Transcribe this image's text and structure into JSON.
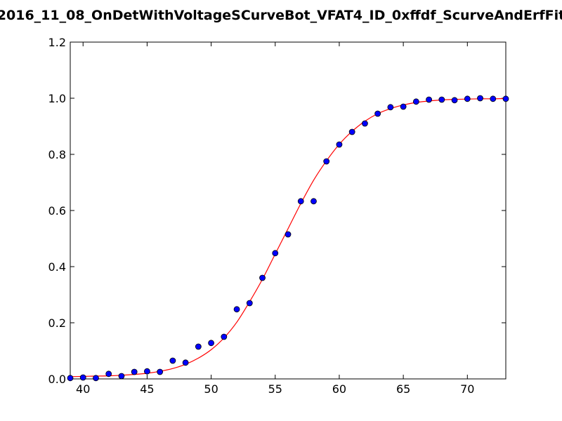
{
  "chart_data": {
    "type": "scatter",
    "title": "2016_11_08_OnDetWithVoltageSCurveBot_VFAT4_ID_0xffdf_ScurveAndErfFit",
    "xlabel": "",
    "ylabel": "",
    "xlim": [
      39,
      73
    ],
    "ylim": [
      0.0,
      1.2
    ],
    "xticks": [
      40,
      45,
      50,
      55,
      60,
      65,
      70
    ],
    "yticks": [
      0.0,
      0.2,
      0.4,
      0.6,
      0.8,
      1.0,
      1.2
    ],
    "xtick_labels": [
      "40",
      "45",
      "50",
      "55",
      "60",
      "65",
      "70"
    ],
    "ytick_labels": [
      "0.0",
      "0.2",
      "0.4",
      "0.6",
      "0.8",
      "1.0",
      "1.2"
    ],
    "grid": false,
    "series": [
      {
        "kind": "points",
        "color": "#0000ff",
        "x": [
          39,
          40,
          41,
          42,
          43,
          44,
          45,
          46,
          47,
          48,
          49,
          50,
          51,
          52,
          53,
          54,
          55,
          56,
          57,
          58,
          59,
          60,
          61,
          62,
          63,
          64,
          65,
          66,
          67,
          68,
          69,
          70,
          71,
          72,
          73
        ],
        "y": [
          0.003,
          0.005,
          0.003,
          0.018,
          0.01,
          0.025,
          0.027,
          0.025,
          0.065,
          0.058,
          0.115,
          0.128,
          0.15,
          0.248,
          0.27,
          0.36,
          0.448,
          0.515,
          0.633,
          0.633,
          0.775,
          0.835,
          0.88,
          0.91,
          0.945,
          0.968,
          0.97,
          0.988,
          0.995,
          0.995,
          0.993,
          0.998,
          1.0,
          0.998,
          0.998
        ]
      },
      {
        "kind": "fit-line",
        "color": "#ff0000",
        "x": [
          39,
          40,
          41,
          42,
          43,
          44,
          45,
          46,
          47,
          48,
          49,
          50,
          51,
          52,
          53,
          54,
          55,
          56,
          57,
          58,
          59,
          60,
          61,
          62,
          63,
          64,
          65,
          66,
          67,
          68,
          69,
          70,
          71,
          72,
          73
        ],
        "y": [
          0.008,
          0.009,
          0.01,
          0.011,
          0.013,
          0.016,
          0.02,
          0.027,
          0.037,
          0.052,
          0.074,
          0.104,
          0.146,
          0.202,
          0.275,
          0.355,
          0.445,
          0.535,
          0.625,
          0.708,
          0.777,
          0.836,
          0.882,
          0.918,
          0.945,
          0.963,
          0.976,
          0.985,
          0.99,
          0.994,
          0.996,
          0.997,
          0.998,
          0.998,
          0.999
        ]
      }
    ]
  }
}
